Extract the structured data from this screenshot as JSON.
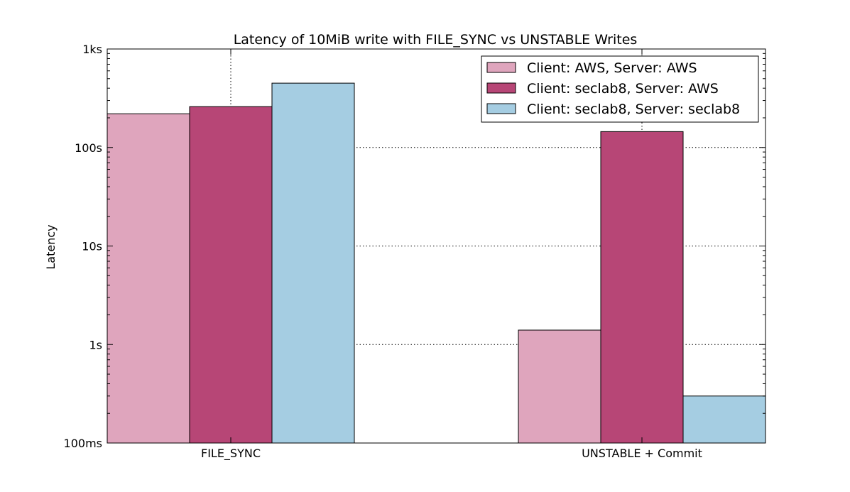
{
  "chart_data": {
    "type": "bar",
    "title": "Latency of 10MiB write with FILE_SYNC vs UNSTABLE Writes",
    "xlabel": "",
    "ylabel": "Latency",
    "yscale": "log",
    "ylim": [
      0.1,
      1000
    ],
    "yticks": [
      {
        "value": 0.1,
        "label": "100ms"
      },
      {
        "value": 1,
        "label": "1s"
      },
      {
        "value": 10,
        "label": "10s"
      },
      {
        "value": 100,
        "label": "100s"
      },
      {
        "value": 1000,
        "label": "1ks"
      }
    ],
    "categories": [
      "FILE_SYNC",
      "UNSTABLE + Commit"
    ],
    "series": [
      {
        "name": "Client: AWS, Server: AWS",
        "color": "#dfa5bd",
        "values": [
          220,
          1.4
        ]
      },
      {
        "name": "Client: seclab8, Server: AWS",
        "color": "#b74676",
        "values": [
          260,
          145
        ]
      },
      {
        "name": "Client: seclab8, Server: seclab8",
        "color": "#a5cde2",
        "values": [
          450,
          0.3
        ]
      }
    ],
    "grid": true,
    "legend_position": "top-right"
  }
}
